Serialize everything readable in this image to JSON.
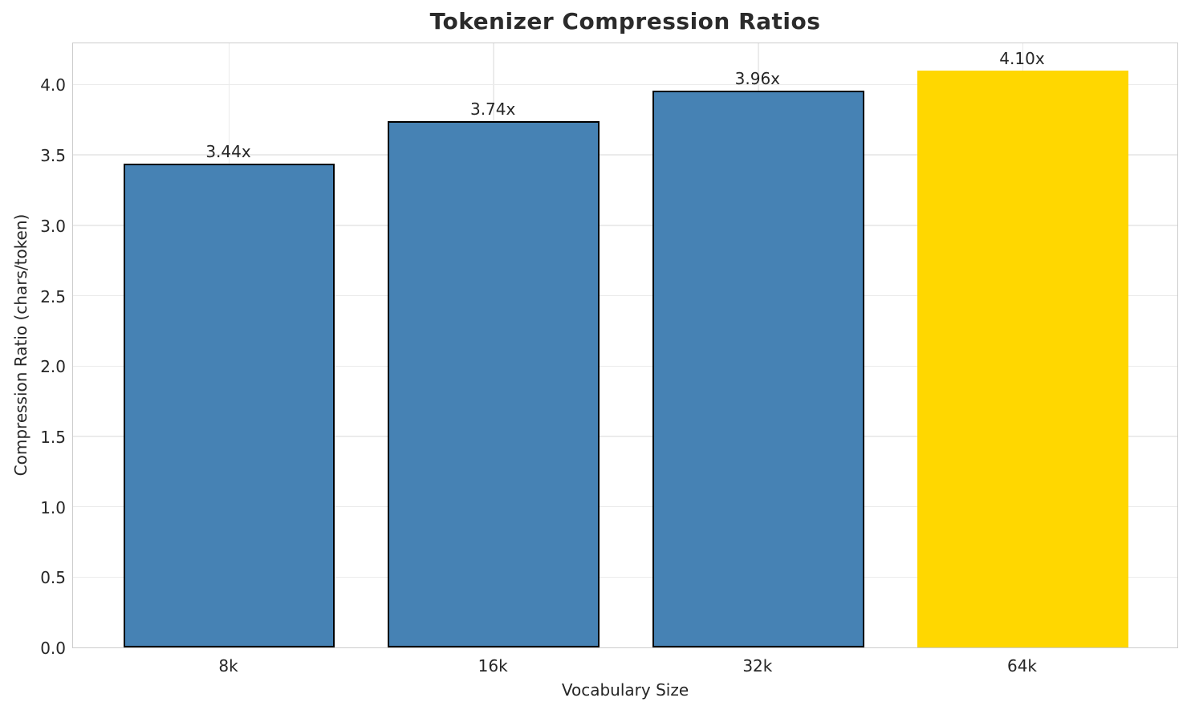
{
  "chart_data": {
    "type": "bar",
    "title": "Tokenizer Compression Ratios",
    "xlabel": "Vocabulary Size",
    "ylabel": "Compression Ratio (chars/token)",
    "categories": [
      "8k",
      "16k",
      "32k",
      "64k"
    ],
    "values": [
      3.44,
      3.74,
      3.96,
      4.1
    ],
    "value_labels": [
      "3.44x",
      "3.74x",
      "3.96x",
      "4.10x"
    ],
    "bar_colors": [
      "#4682B4",
      "#4682B4",
      "#4682B4",
      "#FFD700"
    ],
    "bar_edge_colors": [
      "#000000",
      "#000000",
      "#000000",
      "none"
    ],
    "highlight_index": 3,
    "ylim": [
      0,
      4.305
    ],
    "xlim": [
      -0.59,
      3.59
    ],
    "bar_width_units": 0.8,
    "yticks": {
      "values": [
        0.0,
        0.5,
        1.0,
        1.5,
        2.0,
        2.5,
        3.0,
        3.5,
        4.0
      ],
      "labels": [
        "0.0",
        "0.5",
        "1.0",
        "1.5",
        "2.0",
        "2.5",
        "3.0",
        "3.5",
        "4.0"
      ]
    },
    "grid": true,
    "legend": null,
    "colors": {
      "grid": "#ebebeb",
      "spine": "#cccccc",
      "text": "#262626",
      "title": "#2b2b2b",
      "background": "#ffffff"
    }
  }
}
